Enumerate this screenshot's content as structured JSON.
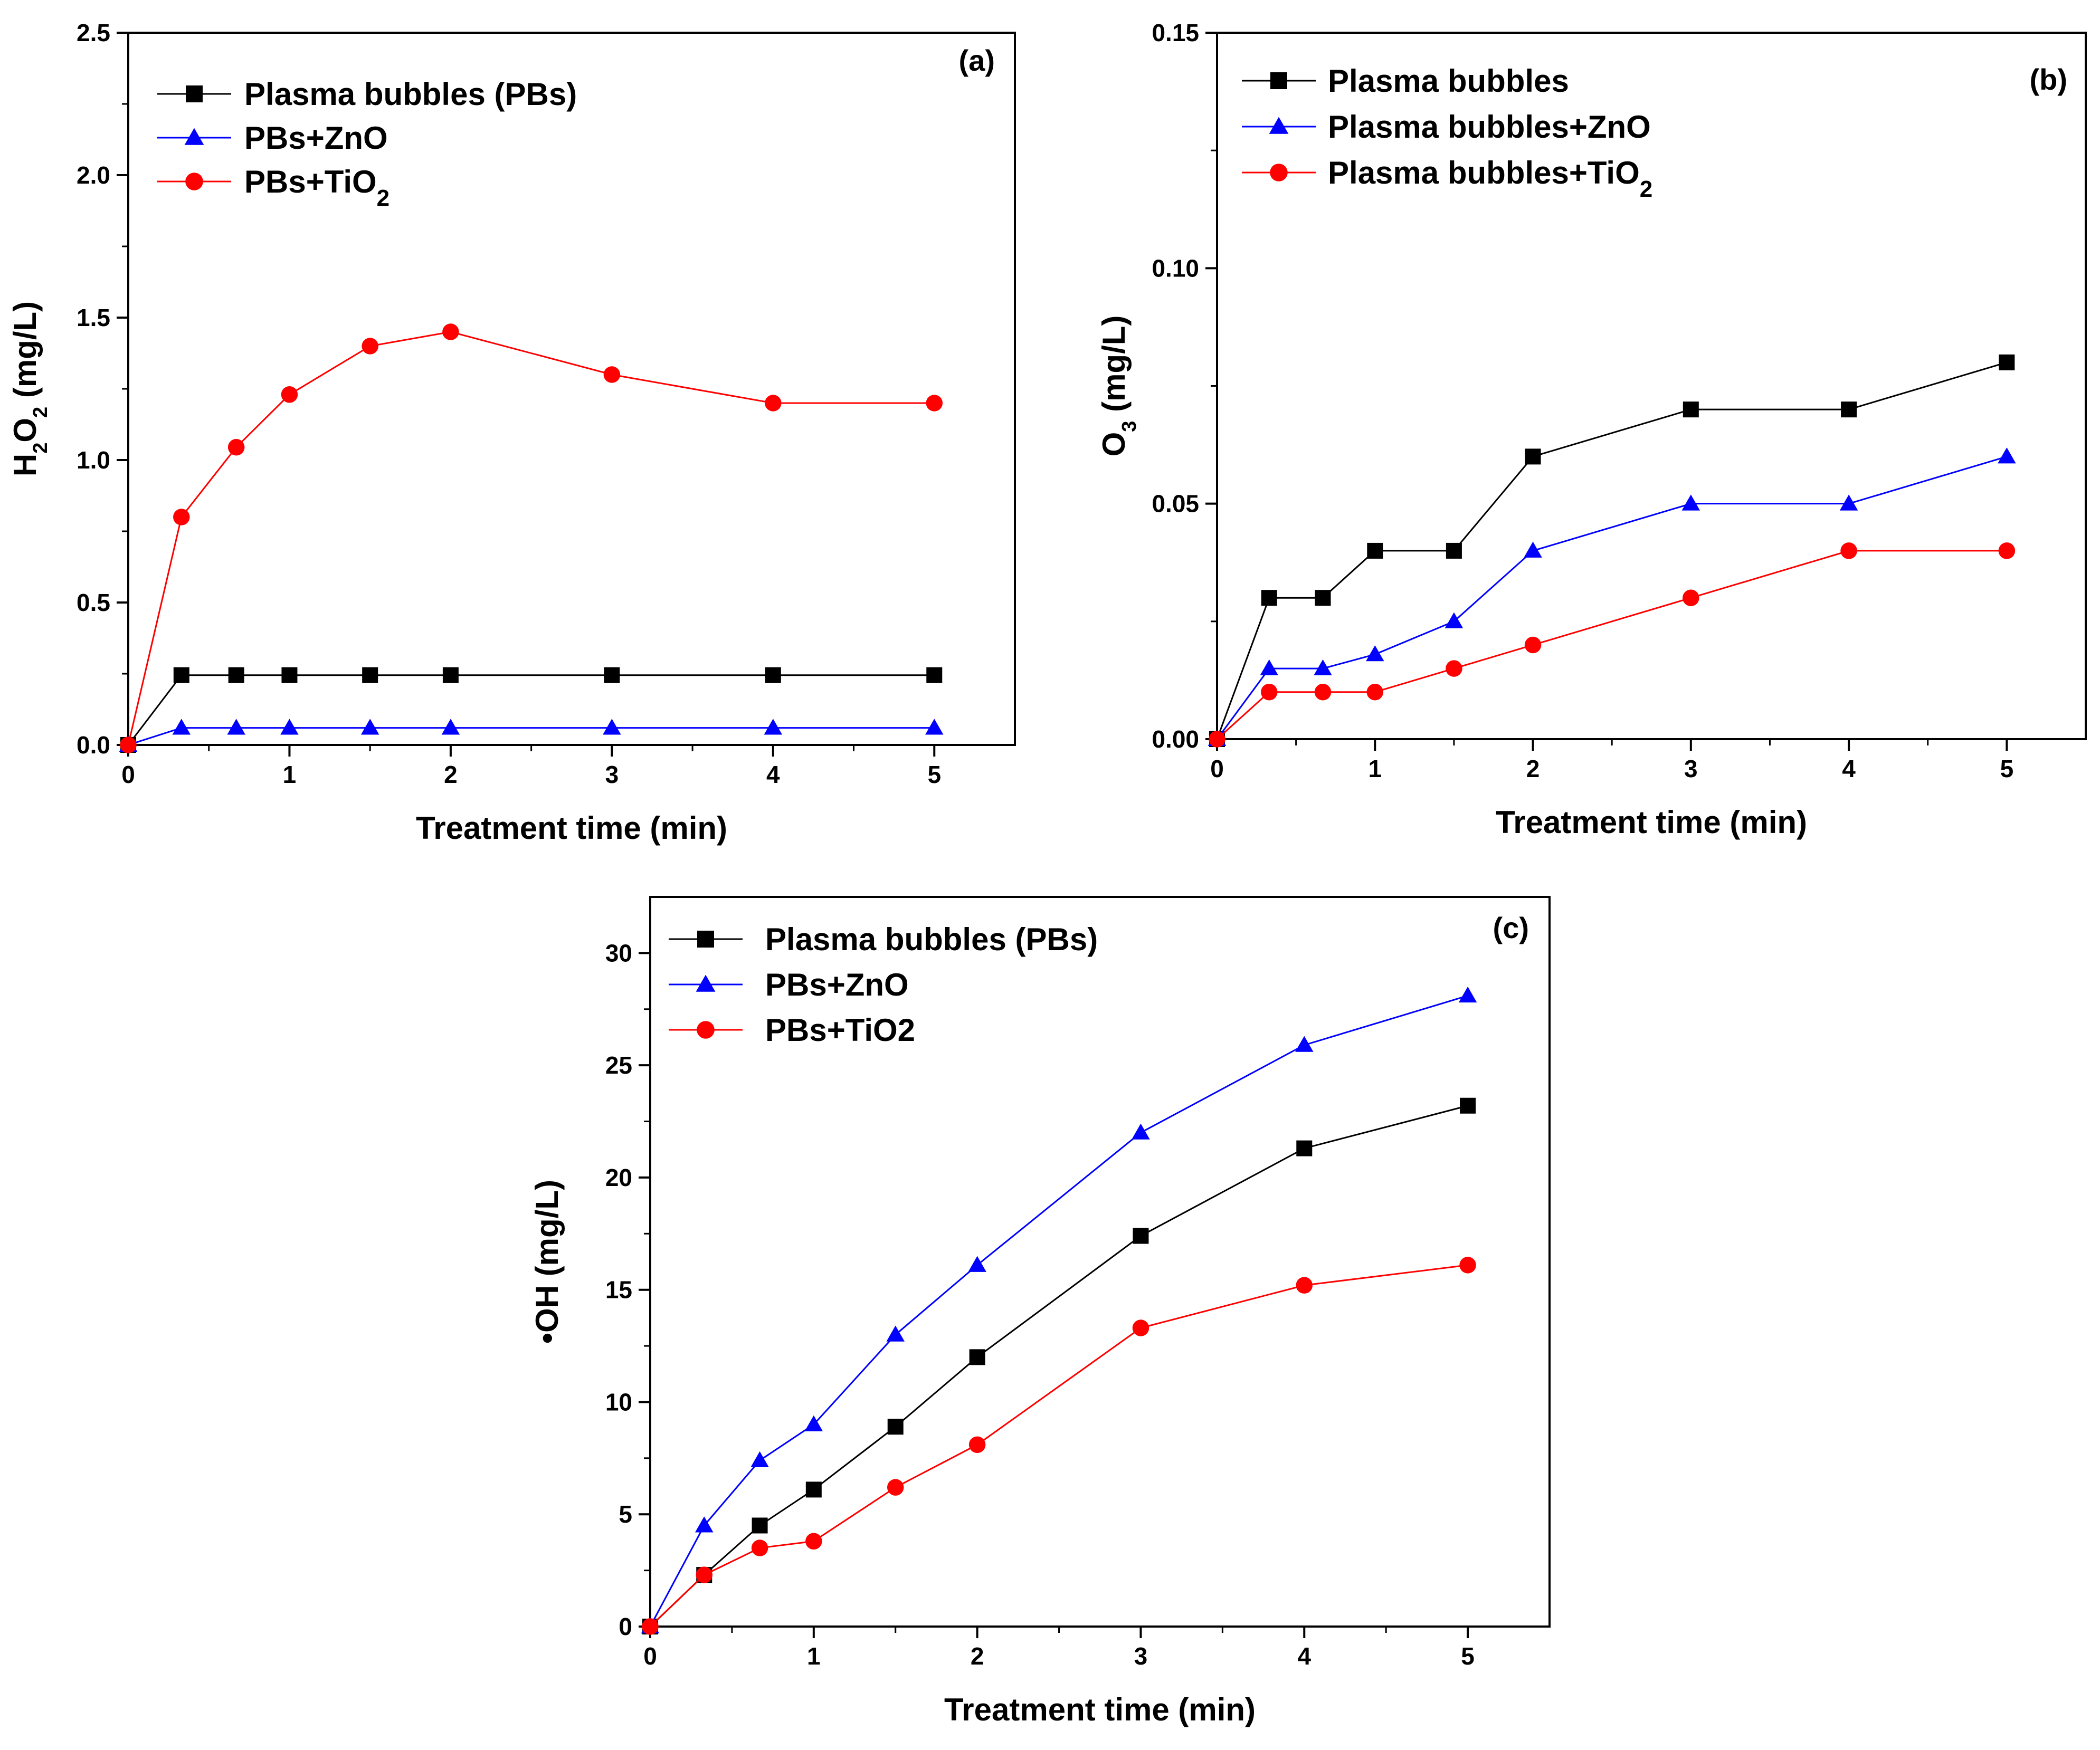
{
  "chart_data": [
    {
      "id": "a",
      "type": "line",
      "panel_label": "(a)",
      "xlabel": "Treatment time (min)",
      "ylabel_parts": [
        [
          "H",
          ""
        ],
        [
          "2",
          "sub"
        ],
        [
          "O",
          ""
        ],
        [
          "2",
          "sub"
        ],
        [
          " (mg/L)",
          ""
        ]
      ],
      "xlim": [
        0,
        5.5
      ],
      "ylim": [
        0,
        2.5
      ],
      "xticks": [
        0,
        1,
        2,
        3,
        4,
        5
      ],
      "yticks": [
        0.0,
        0.5,
        1.0,
        1.5,
        2.0,
        2.5
      ],
      "ytick_decimals": 1,
      "legend_position": "top-left",
      "series": [
        {
          "name_parts": [
            [
              "Plasma bubbles (PBs)",
              ""
            ]
          ],
          "color": "#000000",
          "marker": "square",
          "x": [
            0,
            0.33,
            0.67,
            1,
            1.5,
            2,
            3,
            4,
            5
          ],
          "y": [
            0,
            0.245,
            0.245,
            0.245,
            0.245,
            0.245,
            0.245,
            0.245,
            0.245
          ]
        },
        {
          "name_parts": [
            [
              "PBs+ZnO",
              ""
            ]
          ],
          "color": "#0000ff",
          "marker": "triangle",
          "x": [
            0,
            0.33,
            0.67,
            1,
            1.5,
            2,
            3,
            4,
            5
          ],
          "y": [
            0,
            0.06,
            0.06,
            0.06,
            0.06,
            0.06,
            0.06,
            0.06,
            0.06
          ]
        },
        {
          "name_parts": [
            [
              "PBs+TiO",
              ""
            ],
            [
              "2",
              "sub"
            ]
          ],
          "color": "#ff0000",
          "marker": "circle",
          "x": [
            0,
            0.33,
            0.67,
            1,
            1.5,
            2,
            3,
            4,
            5
          ],
          "y": [
            0,
            0.8,
            1.045,
            1.23,
            1.4,
            1.45,
            1.3,
            1.2,
            1.2
          ]
        }
      ]
    },
    {
      "id": "b",
      "type": "line",
      "panel_label": "(b)",
      "xlabel": "Treatment time (min)",
      "ylabel_parts": [
        [
          "O",
          ""
        ],
        [
          "3",
          "sub"
        ],
        [
          " (mg/L)",
          ""
        ]
      ],
      "xlim": [
        0,
        5.5
      ],
      "ylim": [
        0,
        0.15
      ],
      "xticks": [
        0,
        1,
        2,
        3,
        4,
        5
      ],
      "yticks": [
        0.0,
        0.05,
        0.1,
        0.15
      ],
      "ytick_decimals": 2,
      "legend_position": "top-left",
      "series": [
        {
          "name_parts": [
            [
              "Plasma bubbles",
              ""
            ]
          ],
          "color": "#000000",
          "marker": "square",
          "x": [
            0,
            0.33,
            0.67,
            1,
            1.5,
            2,
            3,
            4,
            5
          ],
          "y": [
            0,
            0.03,
            0.03,
            0.04,
            0.04,
            0.06,
            0.07,
            0.07,
            0.08
          ]
        },
        {
          "name_parts": [
            [
              "Plasma bubbles+ZnO",
              ""
            ]
          ],
          "color": "#0000ff",
          "marker": "triangle",
          "x": [
            0,
            0.33,
            0.67,
            1,
            1.5,
            2,
            3,
            4,
            5
          ],
          "y": [
            0,
            0.015,
            0.015,
            0.018,
            0.025,
            0.04,
            0.05,
            0.05,
            0.06
          ]
        },
        {
          "name_parts": [
            [
              "Plasma bubbles+TiO",
              ""
            ],
            [
              "2",
              "sub"
            ]
          ],
          "color": "#ff0000",
          "marker": "circle",
          "x": [
            0,
            0.33,
            0.67,
            1,
            1.5,
            2,
            3,
            4,
            5
          ],
          "y": [
            0,
            0.01,
            0.01,
            0.01,
            0.015,
            0.02,
            0.03,
            0.04,
            0.04
          ]
        }
      ]
    },
    {
      "id": "c",
      "type": "line",
      "panel_label": "(c)",
      "xlabel": "Treatment time (min)",
      "ylabel_parts": [
        [
          "•OH (mg/L)",
          ""
        ]
      ],
      "xlim": [
        0,
        5.5
      ],
      "ylim": [
        0,
        32.5
      ],
      "xticks": [
        0,
        1,
        2,
        3,
        4,
        5
      ],
      "yticks": [
        0,
        5,
        10,
        15,
        20,
        25,
        30
      ],
      "ytick_decimals": 0,
      "legend_position": "top-left",
      "series": [
        {
          "name_parts": [
            [
              "Plasma bubbles (PBs)",
              ""
            ]
          ],
          "color": "#000000",
          "marker": "square",
          "x": [
            0,
            0.33,
            0.67,
            1,
            1.5,
            2,
            3,
            4,
            5
          ],
          "y": [
            0,
            2.3,
            4.5,
            6.1,
            8.9,
            12.0,
            17.4,
            21.3,
            23.2
          ]
        },
        {
          "name_parts": [
            [
              "PBs+ZnO",
              ""
            ]
          ],
          "color": "#0000ff",
          "marker": "triangle",
          "x": [
            0,
            0.33,
            0.67,
            1,
            1.5,
            2,
            3,
            4,
            5
          ],
          "y": [
            0,
            4.5,
            7.4,
            9.0,
            13.0,
            16.1,
            22.0,
            25.9,
            28.1
          ]
        },
        {
          "name_parts": [
            [
              "PBs+TiO2",
              ""
            ]
          ],
          "color": "#ff0000",
          "marker": "circle",
          "x": [
            0,
            0.33,
            0.67,
            1,
            1.5,
            2,
            3,
            4,
            5
          ],
          "y": [
            0,
            2.3,
            3.5,
            3.8,
            6.2,
            8.1,
            13.3,
            15.2,
            16.1
          ]
        }
      ]
    }
  ]
}
